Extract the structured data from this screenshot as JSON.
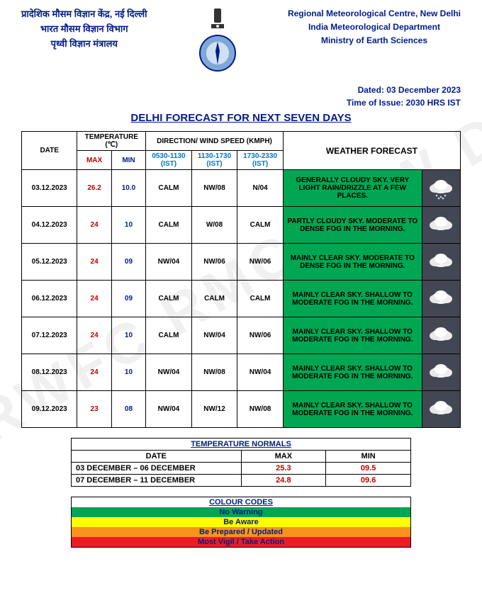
{
  "header": {
    "hindi_line1": "प्रादेशिक मौसम विज्ञान केंद्र, नई दिल्ली",
    "hindi_line2": "भारत मौसम विज्ञान विभाग",
    "hindi_line3": "पृथ्वी विज्ञान मंत्रालय",
    "eng_line1": "Regional Meteorological Centre, New Delhi",
    "eng_line2": "India Meteorological Department",
    "eng_line3": "Ministry of Earth Sciences",
    "dated_label": "Dated: 03 December 2023",
    "time_issue": "Time of Issue: 2030 HRS IST",
    "main_title": "DELHI FORECAST FOR NEXT SEVEN DAYS"
  },
  "table_headers": {
    "date": "DATE",
    "temp": "TEMPERATURE (℃)",
    "max": "MAX",
    "min": "MIN",
    "wind": "DIRECTION/ WIND SPEED (KMPH)",
    "slot1": "0530-1130 (IST)",
    "slot2": "1130-1730 (IST)",
    "slot3": "1730-2330 (IST)",
    "forecast": "WEATHER FORECAST"
  },
  "rows": [
    {
      "date": "03.12.2023",
      "max": "26.2",
      "min": "10.0",
      "w1": "CALM",
      "w2": "NW/08",
      "w3": "N/04",
      "forecast": "GENERALLY CLOUDY SKY. VERY LIGHT RAIN/DRIZZLE AT A FEW PLACES.",
      "icon": "rain"
    },
    {
      "date": "04.12.2023",
      "max": "24",
      "min": "10",
      "w1": "CALM",
      "w2": "W/08",
      "w3": "CALM",
      "forecast": "PARTLY CLOUDY SKY.  MODERATE TO DENSE FOG IN THE MORNING.",
      "icon": "cloud"
    },
    {
      "date": "05.12.2023",
      "max": "24",
      "min": "09",
      "w1": "NW/04",
      "w2": "NW/06",
      "w3": "NW/06",
      "forecast": "MAINLY CLEAR SKY.  MODERATE TO DENSE FOG IN THE MORNING.",
      "icon": "cloud"
    },
    {
      "date": "06.12.2023",
      "max": "24",
      "min": "09",
      "w1": "CALM",
      "w2": "CALM",
      "w3": "CALM",
      "forecast": "MAINLY CLEAR SKY. SHALLOW TO MODERATE FOG IN THE MORNING.",
      "icon": "cloud"
    },
    {
      "date": "07.12.2023",
      "max": "24",
      "min": "10",
      "w1": "CALM",
      "w2": "NW/04",
      "w3": "NW/06",
      "forecast": "MAINLY CLEAR SKY. SHALLOW TO MODERATE FOG IN THE MORNING.",
      "icon": "cloud"
    },
    {
      "date": "08.12.2023",
      "max": "24",
      "min": "10",
      "w1": "NW/04",
      "w2": "NW/08",
      "w3": "NW/04",
      "forecast": "MAINLY CLEAR SKY. SHALLOW TO MODERATE FOG IN THE MORNING.",
      "icon": "cloud"
    },
    {
      "date": "09.12.2023",
      "max": "23",
      "min": "08",
      "w1": "NW/04",
      "w2": "NW/12",
      "w3": "NW/08",
      "forecast": "MAINLY CLEAR SKY. SHALLOW TO MODERATE FOG IN THE MORNING.",
      "icon": "cloud"
    }
  ],
  "normals": {
    "title": "TEMPERATURE NORMALS",
    "date_hdr": "DATE",
    "max_hdr": "MAX",
    "min_hdr": "MIN",
    "rows": [
      {
        "range": "03 DECEMBER – 06 DECEMBER",
        "max": "25.3",
        "min": "09.5"
      },
      {
        "range": "07 DECEMBER – 11 DECEMBER",
        "max": "24.8",
        "min": "09.6"
      }
    ]
  },
  "colour_codes": {
    "title": "COLOUR CODES",
    "items": [
      {
        "label": "No Warning",
        "bg": "#00a651"
      },
      {
        "label": "Be Aware",
        "bg": "#ffff00"
      },
      {
        "label": "Be Prepared / Updated",
        "bg": "#f7941d"
      },
      {
        "label": "Most Vigil / Take Action",
        "bg": "#ed1c24"
      }
    ]
  },
  "colors": {
    "brand_blue": "#001b8a",
    "max_red": "#c00000",
    "forecast_green": "#00a651",
    "icon_bg": "#434753"
  },
  "watermark": "RWFC RMC NEW D"
}
